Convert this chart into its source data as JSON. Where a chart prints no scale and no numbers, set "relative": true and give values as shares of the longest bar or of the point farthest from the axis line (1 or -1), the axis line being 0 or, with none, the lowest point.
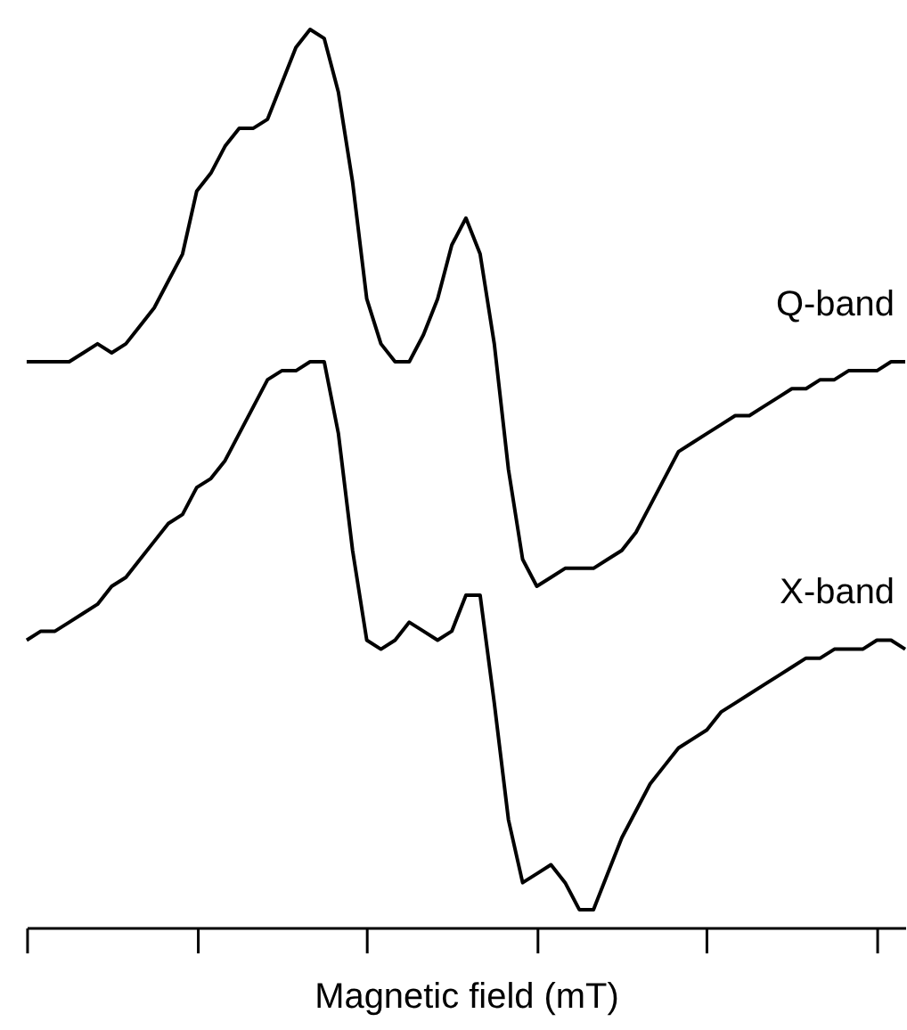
{
  "chart_data": {
    "type": "line",
    "relative": true,
    "xlabel": "Magnetic field (mT)",
    "grid": false,
    "line_style": "solid",
    "categories": [
      null,
      null,
      null,
      null,
      null,
      null,
      null,
      null,
      null,
      null,
      null,
      null,
      null,
      null,
      null,
      null,
      null,
      null,
      null,
      null,
      null,
      null,
      null,
      null,
      null,
      null,
      null,
      null,
      null,
      null,
      null,
      null,
      null,
      null,
      null,
      null,
      null,
      null,
      null,
      null,
      null,
      null,
      null,
      null,
      null,
      null,
      null,
      null,
      null,
      null,
      null,
      null,
      null,
      null,
      null,
      null,
      null,
      null,
      null,
      null,
      null,
      null,
      null
    ],
    "series": [
      {
        "name": "Q-band",
        "color": "#000000",
        "values": [
          0.63,
          0.63,
          0.63,
          0.63,
          0.64,
          0.65,
          0.64,
          0.65,
          0.67,
          0.69,
          0.72,
          0.75,
          0.82,
          0.84,
          0.87,
          0.89,
          0.89,
          0.9,
          0.94,
          0.98,
          1.0,
          0.99,
          0.93,
          0.83,
          0.7,
          0.65,
          0.63,
          0.63,
          0.66,
          0.7,
          0.76,
          0.79,
          0.75,
          0.65,
          0.51,
          0.41,
          0.38,
          0.39,
          0.4,
          0.4,
          0.4,
          0.41,
          0.42,
          0.44,
          0.47,
          0.5,
          0.53,
          0.54,
          0.55,
          0.56,
          0.57,
          0.57,
          0.58,
          0.59,
          0.6,
          0.6,
          0.61,
          0.61,
          0.62,
          0.62,
          0.62,
          0.63,
          0.63
        ]
      },
      {
        "name": "X-band",
        "color": "#000000",
        "values": [
          0.32,
          0.33,
          0.33,
          0.34,
          0.35,
          0.36,
          0.38,
          0.39,
          0.41,
          0.43,
          0.45,
          0.46,
          0.49,
          0.5,
          0.52,
          0.55,
          0.58,
          0.61,
          0.62,
          0.62,
          0.63,
          0.63,
          0.55,
          0.42,
          0.32,
          0.31,
          0.32,
          0.34,
          0.33,
          0.32,
          0.33,
          0.37,
          0.37,
          0.25,
          0.12,
          0.05,
          0.06,
          0.07,
          0.05,
          0.02,
          0.02,
          0.06,
          0.1,
          0.13,
          0.16,
          0.18,
          0.2,
          0.21,
          0.22,
          0.24,
          0.25,
          0.26,
          0.27,
          0.28,
          0.29,
          0.3,
          0.3,
          0.31,
          0.31,
          0.31,
          0.32,
          0.32,
          0.31
        ]
      }
    ]
  }
}
